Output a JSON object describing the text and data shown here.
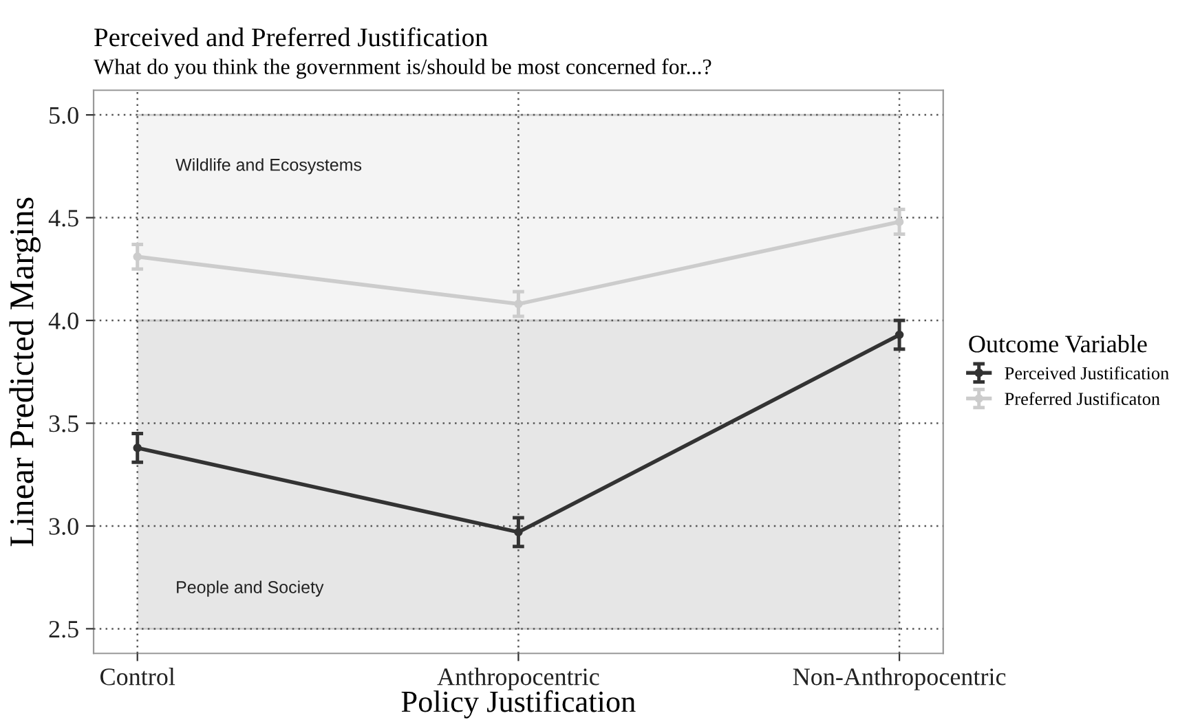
{
  "chart_data": {
    "type": "line",
    "title": "Perceived and Preferred Justification",
    "subtitle": "What do you think the government is/should be most concerned for...?",
    "xlabel": "Policy Justification",
    "ylabel": "Linear Predicted Margins",
    "legend_title": "Outcome Variable",
    "categories": [
      "Control",
      "Anthropocentric",
      "Non-Anthropocentric"
    ],
    "series": [
      {
        "name": "Perceived Justification",
        "color": "#333333",
        "values": [
          3.38,
          2.97,
          3.93
        ],
        "errors": [
          0.07,
          0.07,
          0.07
        ]
      },
      {
        "name": "Preferred Justificaton",
        "color": "#cccccc",
        "values": [
          4.31,
          4.08,
          4.48
        ],
        "errors": [
          0.06,
          0.06,
          0.06
        ]
      }
    ],
    "bands": [
      {
        "axis": "y",
        "from": 2.5,
        "to": 4.0,
        "label": "People and Society",
        "color": "#e6e6e6"
      },
      {
        "axis": "y",
        "from": 4.0,
        "to": 5.0,
        "label": "Wildlife and Ecosystems",
        "color": "#f4f4f4"
      }
    ],
    "ylim": [
      2.38,
      5.12
    ],
    "yticks": [
      2.5,
      {
        "value": 3,
        "label": "3.0"
      },
      3.5,
      {
        "value": 4,
        "label": "4.0"
      },
      4.5,
      {
        "value": 5,
        "label": "5.0"
      }
    ],
    "grid": true,
    "legend": "right",
    "marker": "circle",
    "line_style": "solid"
  }
}
